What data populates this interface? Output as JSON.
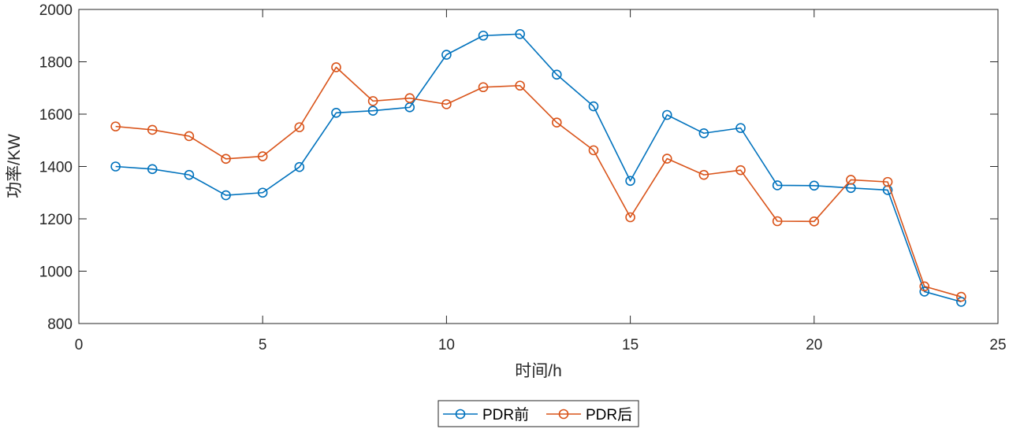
{
  "chart_data": {
    "type": "line",
    "title": "",
    "xlabel": "时间/h",
    "ylabel": "功率/KW",
    "xlim": [
      0,
      25
    ],
    "ylim": [
      800,
      2000
    ],
    "xticks": [
      0,
      5,
      10,
      15,
      20,
      25
    ],
    "yticks": [
      800,
      1000,
      1200,
      1400,
      1600,
      1800,
      2000
    ],
    "grid": false,
    "legend_position": "bottom-center",
    "x": [
      1,
      2,
      3,
      4,
      5,
      6,
      7,
      8,
      9,
      10,
      11,
      12,
      13,
      14,
      15,
      16,
      17,
      18,
      19,
      20,
      21,
      22,
      23,
      24
    ],
    "series": [
      {
        "name": "PDR前",
        "color": "#0072BD",
        "marker": "circle",
        "values": [
          1400,
          1390,
          1368,
          1290,
          1300,
          1398,
          1605,
          1613,
          1626,
          1827,
          1900,
          1906,
          1751,
          1630,
          1345,
          1597,
          1527,
          1547,
          1328,
          1327,
          1318,
          1310,
          922,
          883
        ]
      },
      {
        "name": "PDR后",
        "color": "#D95319",
        "marker": "circle",
        "values": [
          1553,
          1540,
          1516,
          1429,
          1439,
          1550,
          1779,
          1650,
          1661,
          1638,
          1703,
          1709,
          1568,
          1462,
          1206,
          1430,
          1368,
          1386,
          1191,
          1190,
          1349,
          1341,
          942,
          902
        ]
      }
    ]
  }
}
